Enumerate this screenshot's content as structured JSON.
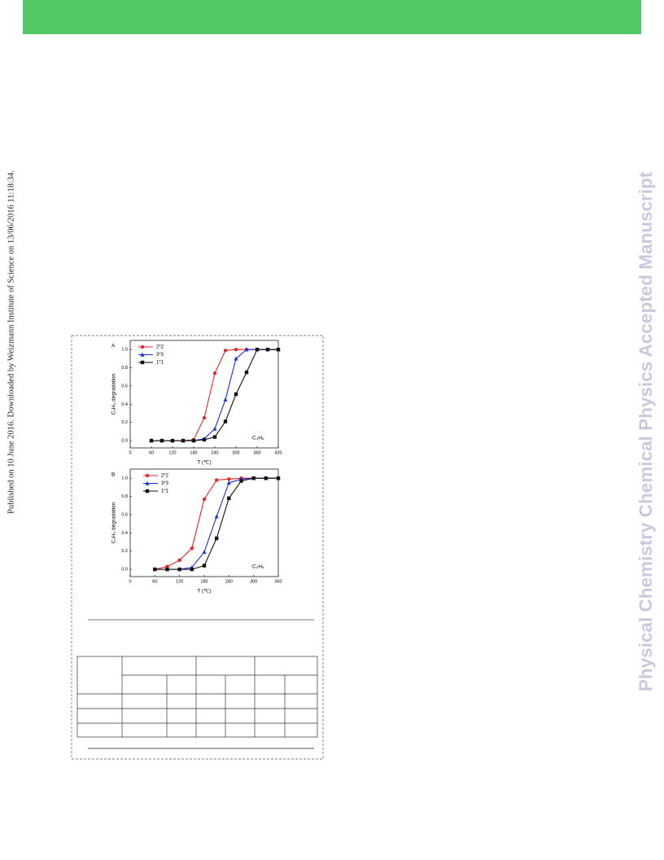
{
  "side_note": "Published on 10 June 2016. Downloaded by Weizmann Institute of Science on 13/06/2016 11:18:34.",
  "watermark": "Physical Chemistry Chemical Physics Accepted Manuscript",
  "chart_data": [
    {
      "type": "line",
      "panel_label": "A",
      "x_label": "T (℃)",
      "y_label": "C₃H₆ degradation",
      "annotation": "C₃H₆",
      "legend": "upper left",
      "x": [
        60,
        90,
        120,
        150,
        180,
        210,
        240,
        270,
        300,
        330,
        360,
        390,
        420
      ],
      "xlim": [
        0,
        420
      ],
      "xticks": [
        0,
        60,
        120,
        180,
        240,
        300,
        360,
        420
      ],
      "ylim": [
        -0.08,
        1.1
      ],
      "yticks": [
        {
          "value": 0,
          "label": "0.0"
        },
        0.2,
        0.4,
        0.6,
        0.8,
        {
          "value": 1,
          "label": "1.0"
        }
      ],
      "series": [
        {
          "name": "2*2",
          "color": "#e8262a",
          "marker": "circle",
          "values": [
            0,
            0,
            0,
            0,
            0.01,
            0.25,
            0.74,
            0.99,
            1,
            1,
            1,
            1,
            1
          ]
        },
        {
          "name": "3*3",
          "color": "#1a2ee8",
          "marker": "triangle",
          "values": [
            0,
            0,
            0,
            0,
            0,
            0.02,
            0.13,
            0.45,
            0.9,
            1,
            1,
            1,
            1
          ]
        },
        {
          "name": "1*1",
          "color": "#111111",
          "marker": "square",
          "values": [
            0,
            0,
            0,
            0,
            0,
            0.01,
            0.04,
            0.21,
            0.51,
            0.75,
            1,
            1,
            1
          ]
        }
      ]
    },
    {
      "type": "line",
      "panel_label": "B",
      "x_label": "T (℃)",
      "y_label": "C₃H₆ degradation",
      "annotation": "C₃H₆",
      "legend": "upper left",
      "x": [
        60,
        90,
        120,
        150,
        180,
        210,
        240,
        270,
        300,
        330,
        360
      ],
      "xlim": [
        0,
        360
      ],
      "xticks": [
        0,
        60,
        120,
        180,
        240,
        300,
        360
      ],
      "ylim": [
        -0.08,
        1.1
      ],
      "yticks": [
        {
          "value": 0,
          "label": "0.0"
        },
        0.2,
        0.4,
        0.6,
        0.8,
        {
          "value": 1,
          "label": "1.0"
        }
      ],
      "series": [
        {
          "name": "2*2",
          "color": "#e8262a",
          "marker": "circle",
          "values": [
            0,
            0.03,
            0.1,
            0.23,
            0.77,
            0.98,
            0.99,
            1,
            1,
            1,
            1
          ]
        },
        {
          "name": "3*3",
          "color": "#1a2ee8",
          "marker": "triangle",
          "values": [
            0,
            0,
            0,
            0.02,
            0.19,
            0.58,
            0.95,
            0.99,
            1,
            1,
            1
          ]
        },
        {
          "name": "1*1",
          "color": "#111111",
          "marker": "square",
          "values": [
            0,
            0,
            0,
            0,
            0.04,
            0.34,
            0.78,
            0.97,
            1,
            1,
            1
          ]
        }
      ]
    }
  ]
}
